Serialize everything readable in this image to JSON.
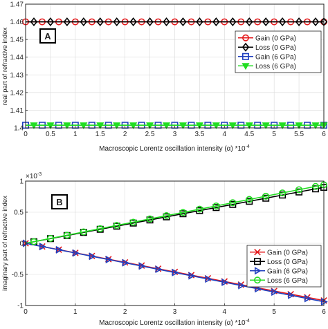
{
  "chart_data": [
    {
      "type": "line",
      "panel_label": "A",
      "xlabel": "Macroscopic Lorentz oscillation intensity (α) *10",
      "xlabel_exp": "-4",
      "ylabel": "real part of refractive index",
      "xlim": [
        0,
        6
      ],
      "ylim": [
        1.4,
        1.47
      ],
      "x_ticks": [
        "0",
        "0.5",
        "1",
        "1.5",
        "2",
        "2.5",
        "3",
        "3.5",
        "4",
        "4.5",
        "5",
        "5.5",
        "6"
      ],
      "y_ticks": [
        "1.4",
        "1.41",
        "1.42",
        "1.43",
        "1.44",
        "1.45",
        "1.46",
        "1.47"
      ],
      "legend_position": "right",
      "series": [
        {
          "name": "Gain (0 GPa)",
          "color": "#e41a1c",
          "marker": "circle",
          "x": [
            0,
            6
          ],
          "y": [
            1.46,
            1.46
          ]
        },
        {
          "name": "Loss (0 GPa)",
          "color": "#000000",
          "marker": "diamond",
          "x": [
            0,
            6
          ],
          "y": [
            1.46,
            1.46
          ]
        },
        {
          "name": "Gain (6 GPa)",
          "color": "#1f3fbf",
          "marker": "square",
          "x": [
            0,
            6
          ],
          "y": [
            1.4015,
            1.4015
          ]
        },
        {
          "name": "Loss (6 GPa)",
          "color": "#22dd22",
          "marker": "triangle-down",
          "x": [
            0,
            6
          ],
          "y": [
            1.4015,
            1.4015
          ]
        }
      ]
    },
    {
      "type": "line",
      "panel_label": "B",
      "xlabel": "Macroscopic Lorentz oscillation intensity (α) *10",
      "xlabel_exp": "-4",
      "ylabel": "imaginary part of refractive index",
      "y_multiplier": "×10",
      "y_multiplier_exp": "-3",
      "xlim": [
        0,
        6
      ],
      "ylim": [
        -1,
        1
      ],
      "x_ticks": [
        "0",
        "1",
        "2",
        "3",
        "4",
        "5",
        "6"
      ],
      "y_ticks": [
        "-1",
        "-0.5",
        "0",
        "0.5",
        "1"
      ],
      "legend_position": "lower-right",
      "series": [
        {
          "name": "Gain (0 GPa)",
          "color": "#e41a1c",
          "marker": "x",
          "x": [
            0,
            6
          ],
          "y": [
            0,
            -0.92
          ]
        },
        {
          "name": "Loss (0 GPa)",
          "color": "#000000",
          "marker": "square",
          "x": [
            0,
            6
          ],
          "y": [
            0,
            0.9
          ]
        },
        {
          "name": "Gain (6 GPa)",
          "color": "#1f3fbf",
          "marker": "triangle-right",
          "x": [
            0,
            6
          ],
          "y": [
            0,
            -0.94
          ]
        },
        {
          "name": "Loss (6 GPa)",
          "color": "#22dd22",
          "marker": "circle",
          "x": [
            0,
            6
          ],
          "y": [
            0,
            0.94
          ]
        }
      ]
    }
  ]
}
